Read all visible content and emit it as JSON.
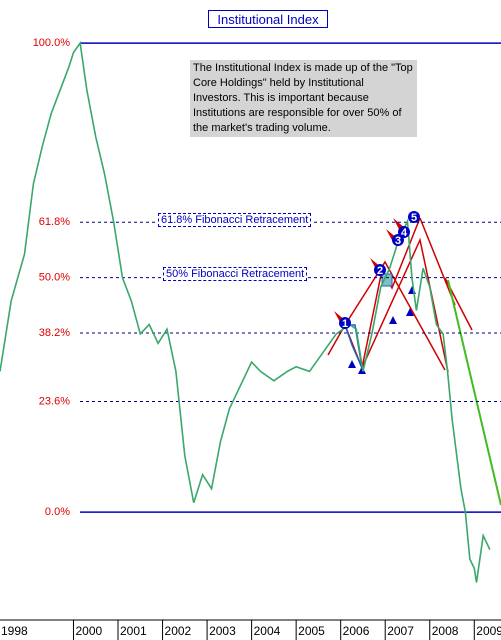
{
  "chart_data": {
    "type": "line",
    "title": "Institutional Index",
    "annotation": "The Institutional Index is made up of the \"Top Core Holdings\" held by Institutional Investors. This is important because Institutions are responsible for over 50% of the market's trading volume.",
    "fib_labels": [
      "61.8% Fibonacci Retracement",
      "50% Fibonacci Retracement"
    ],
    "wave_labels": [
      "1",
      "2",
      "3",
      "4",
      "5"
    ],
    "x": [
      1998.35,
      1998.6,
      1998.9,
      1999.1,
      1999.3,
      1999.5,
      1999.7,
      1999.9,
      2000.0,
      2000.15,
      2000.3,
      2000.5,
      2000.7,
      2000.9,
      2001.1,
      2001.3,
      2001.5,
      2001.7,
      2001.9,
      2002.1,
      2002.3,
      2002.5,
      2002.7,
      2002.9,
      2003.1,
      2003.3,
      2003.5,
      2003.8,
      2004.0,
      2004.2,
      2004.5,
      2004.8,
      2005.0,
      2005.3,
      2005.6,
      2005.9,
      2006.2,
      2006.35,
      2006.5,
      2006.7,
      2006.9,
      2007.1,
      2007.3,
      2007.5,
      2007.6,
      2007.7,
      2007.85,
      2008.0,
      2008.15,
      2008.3,
      2008.4,
      2008.5,
      2008.7,
      2008.8,
      2008.9,
      2009.0,
      2009.05,
      2009.2,
      2009.35
    ],
    "series": [
      {
        "name": "Institutional Index",
        "color": "#3aa76d",
        "values": [
          30,
          45,
          55,
          70,
          78,
          85,
          90,
          95,
          98,
          100,
          90,
          80,
          72,
          62,
          50,
          45,
          38,
          40,
          36,
          39,
          30,
          12,
          2,
          8,
          5,
          15,
          22,
          28,
          32,
          30,
          28,
          30,
          31,
          30,
          34,
          38,
          40,
          39,
          30,
          38,
          48,
          52,
          58,
          62,
          50,
          43,
          52,
          48,
          40,
          38,
          30,
          20,
          5,
          0,
          -10,
          -12,
          -15,
          -5,
          -8
        ]
      }
    ],
    "xlim": [
      1998.35,
      2009.6
    ],
    "xticks": [
      1998,
      2000,
      2001,
      2002,
      2003,
      2004,
      2005,
      2006,
      2007,
      2008,
      2009
    ],
    "ylim": [
      -23,
      102.8
    ],
    "yticks": [
      {
        "value": 100,
        "label": "100.0%"
      },
      {
        "value": 61.8,
        "label": "61.8%"
      },
      {
        "value": 50,
        "label": "50.0%"
      },
      {
        "value": 38.2,
        "label": "38.2%"
      },
      {
        "value": 23.6,
        "label": "23.6%"
      },
      {
        "value": 0,
        "label": "0.0%"
      }
    ]
  }
}
